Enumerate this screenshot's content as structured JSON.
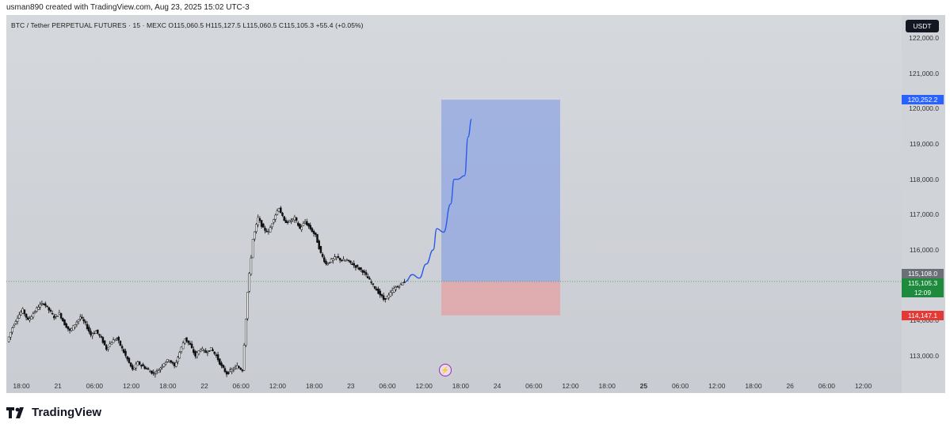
{
  "header": {
    "credit": "usman890 created with TradingView.com, Aug 23, 2025 15:02 UTC-3"
  },
  "legend": {
    "text": "BTC / Tether PERPETUAL FUTURES · 15 · MEXC  O115,060.5  H115,127.5  L115,060.5  C115,105.3  +55.4 (+0.05%)"
  },
  "currency_button": "USDT",
  "price_tags": {
    "target": {
      "label": "120,252.2",
      "value": 120252.2,
      "color": "#2962ff"
    },
    "entry": {
      "label": "115,108.0",
      "value": 115108.0,
      "color": "#6b6f78"
    },
    "last": {
      "label": "115,105.3",
      "sub": "12:09",
      "value": 115105.3,
      "color": "#1e8a3c"
    },
    "stop": {
      "label": "114,147.1",
      "value": 114147.1,
      "color": "#e53935"
    }
  },
  "brand": "TradingView",
  "chart_data": {
    "type": "candlestick",
    "y_ticks": [
      {
        "label": "122,000.0",
        "value": 122000
      },
      {
        "label": "121,000.0",
        "value": 121000
      },
      {
        "label": "120,000.0",
        "value": 120000
      },
      {
        "label": "119,000.0",
        "value": 119000
      },
      {
        "label": "118,000.0",
        "value": 118000
      },
      {
        "label": "117,000.0",
        "value": 117000
      },
      {
        "label": "116,000.0",
        "value": 116000
      },
      {
        "label": "114,000.0",
        "value": 114000
      },
      {
        "label": "113,000.0",
        "value": 113000
      }
    ],
    "x_ticks": [
      "18:00",
      "21",
      "06:00",
      "12:00",
      "18:00",
      "22",
      "06:00",
      "12:00",
      "18:00",
      "23",
      "06:00",
      "12:00",
      "18:00",
      "24",
      "06:00",
      "12:00",
      "18:00",
      "25",
      "06:00",
      "12:00",
      "18:00",
      "26",
      "06:00",
      "12:00"
    ],
    "ylim": [
      112350,
      122650
    ],
    "close_path": [
      [
        0,
        113.4
      ],
      [
        3,
        113.8
      ],
      [
        6,
        114.1
      ],
      [
        9,
        114.3
      ],
      [
        12,
        114.0
      ],
      [
        15,
        114.2
      ],
      [
        18,
        114.4
      ],
      [
        21,
        114.5
      ],
      [
        24,
        114.3
      ],
      [
        27,
        114.1
      ],
      [
        30,
        114.2
      ],
      [
        33,
        113.9
      ],
      [
        36,
        113.7
      ],
      [
        39,
        113.9
      ],
      [
        42,
        114.1
      ],
      [
        45,
        113.9
      ],
      [
        48,
        113.6
      ],
      [
        51,
        113.7
      ],
      [
        54,
        113.5
      ],
      [
        57,
        113.2
      ],
      [
        60,
        113.4
      ],
      [
        63,
        113.5
      ],
      [
        66,
        113.2
      ],
      [
        69,
        112.9
      ],
      [
        72,
        112.6
      ],
      [
        75,
        112.8
      ],
      [
        78,
        112.7
      ],
      [
        81,
        112.6
      ],
      [
        84,
        112.5
      ],
      [
        87,
        112.6
      ],
      [
        90,
        112.8
      ],
      [
        93,
        112.9
      ],
      [
        96,
        112.7
      ],
      [
        99,
        113.1
      ],
      [
        102,
        113.5
      ],
      [
        105,
        113.3
      ],
      [
        108,
        113.0
      ],
      [
        111,
        113.2
      ],
      [
        114,
        113.1
      ],
      [
        117,
        113.2
      ],
      [
        120,
        113.0
      ],
      [
        123,
        112.7
      ],
      [
        126,
        112.5
      ],
      [
        129,
        112.6
      ],
      [
        132,
        112.7
      ],
      [
        135,
        112.6
      ],
      [
        138,
        114.8
      ],
      [
        141,
        116.3
      ],
      [
        144,
        116.9
      ],
      [
        147,
        116.6
      ],
      [
        150,
        116.5
      ],
      [
        153,
        116.9
      ],
      [
        156,
        117.2
      ],
      [
        159,
        116.8
      ],
      [
        162,
        116.8
      ],
      [
        165,
        116.9
      ],
      [
        168,
        116.6
      ],
      [
        171,
        116.8
      ],
      [
        174,
        116.6
      ],
      [
        177,
        116.4
      ],
      [
        180,
        115.9
      ],
      [
        183,
        115.6
      ],
      [
        186,
        115.7
      ],
      [
        189,
        115.8
      ],
      [
        192,
        115.7
      ],
      [
        195,
        115.7
      ],
      [
        198,
        115.6
      ],
      [
        201,
        115.5
      ],
      [
        204,
        115.4
      ],
      [
        207,
        115.2
      ],
      [
        210,
        115.0
      ],
      [
        213,
        114.8
      ],
      [
        216,
        114.6
      ],
      [
        219,
        114.7
      ],
      [
        222,
        114.9
      ],
      [
        225,
        115.0
      ],
      [
        228,
        115.1
      ]
    ],
    "projection": {
      "path": [
        [
          228,
          115.1
        ],
        [
          232,
          115.3
        ],
        [
          236,
          115.2
        ],
        [
          240,
          115.6
        ],
        [
          244,
          116.0
        ],
        [
          246,
          116.6
        ],
        [
          250,
          116.5
        ],
        [
          254,
          117.3
        ],
        [
          256,
          118.0
        ],
        [
          258,
          118.0
        ],
        [
          262,
          118.1
        ],
        [
          264,
          119.2
        ],
        [
          266,
          119.7
        ]
      ]
    },
    "long_position": {
      "entry": 115108.0,
      "target": 120252.2,
      "stop": 114147.1
    }
  }
}
